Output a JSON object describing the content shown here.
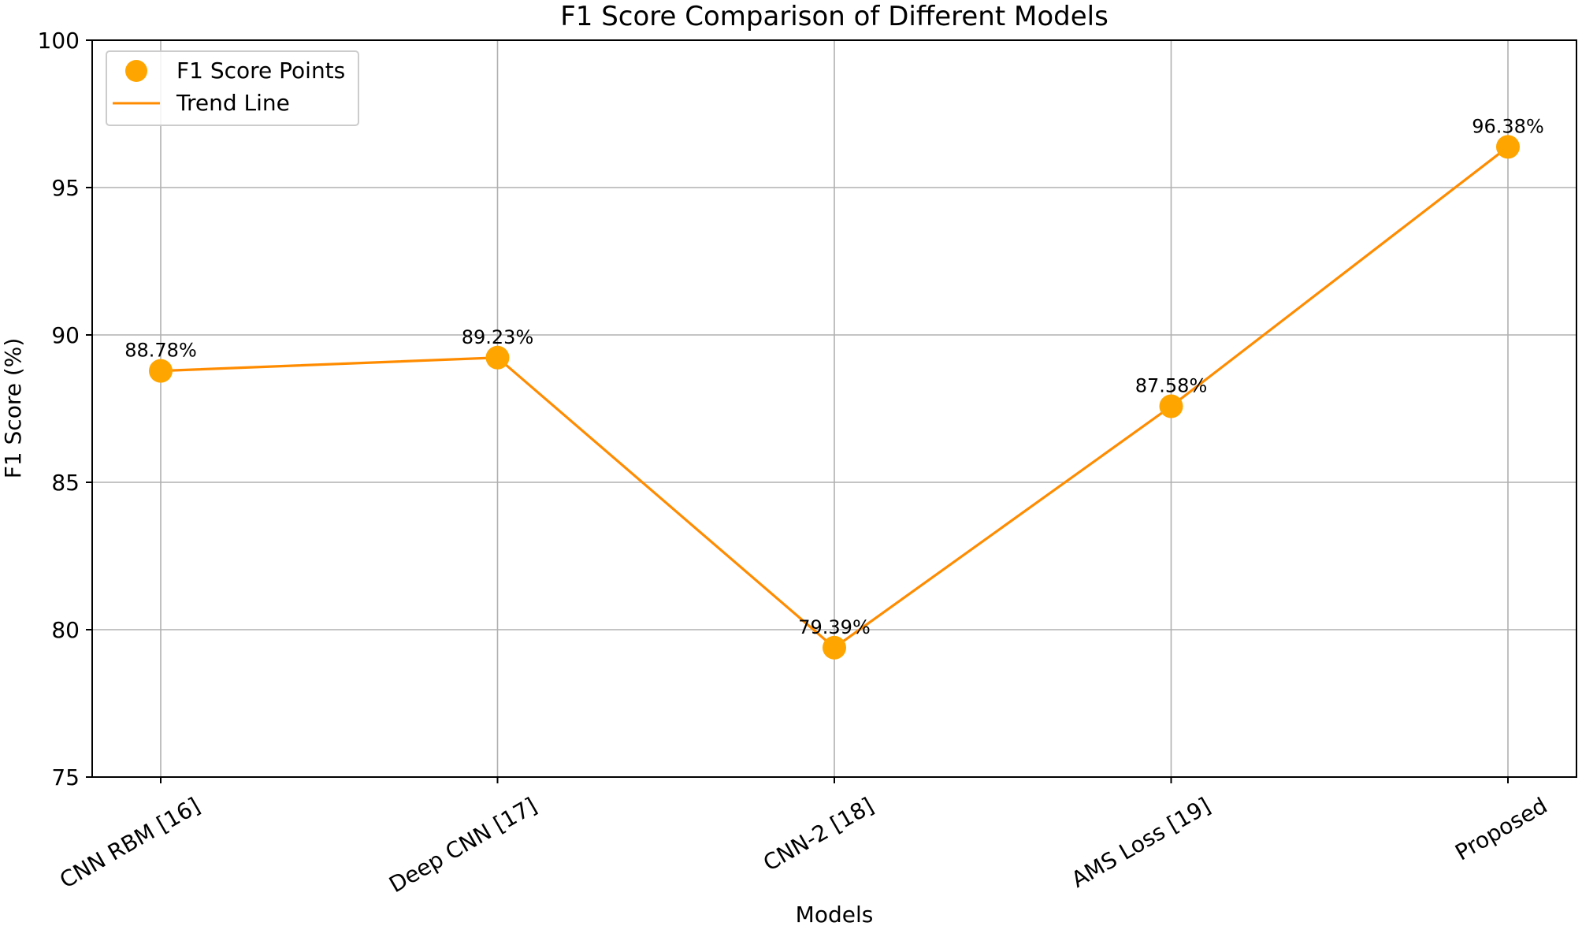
{
  "chart_data": {
    "type": "line",
    "title": "F1 Score Comparison of Different Models",
    "xlabel": "Models",
    "ylabel": "F1 Score (%)",
    "categories": [
      "CNN RBM [16]",
      "Deep CNN [17]",
      "CNN-2 [18]",
      "AMS Loss [19]",
      "Proposed"
    ],
    "series": [
      {
        "name": "F1 Score Points",
        "kind": "scatter",
        "color": "#FFA500",
        "values": [
          88.78,
          89.23,
          79.39,
          87.58,
          96.38
        ],
        "labels": [
          "88.78%",
          "89.23%",
          "79.39%",
          "87.58%",
          "96.38%"
        ]
      },
      {
        "name": "Trend Line",
        "kind": "line",
        "color": "#FF8C00",
        "values": [
          88.78,
          89.23,
          79.39,
          87.58,
          96.38
        ]
      }
    ],
    "ylim": [
      75,
      100
    ],
    "yticks": [
      "75",
      "80",
      "85",
      "90",
      "95",
      "100"
    ],
    "grid": true,
    "legend_position": "top-left"
  }
}
